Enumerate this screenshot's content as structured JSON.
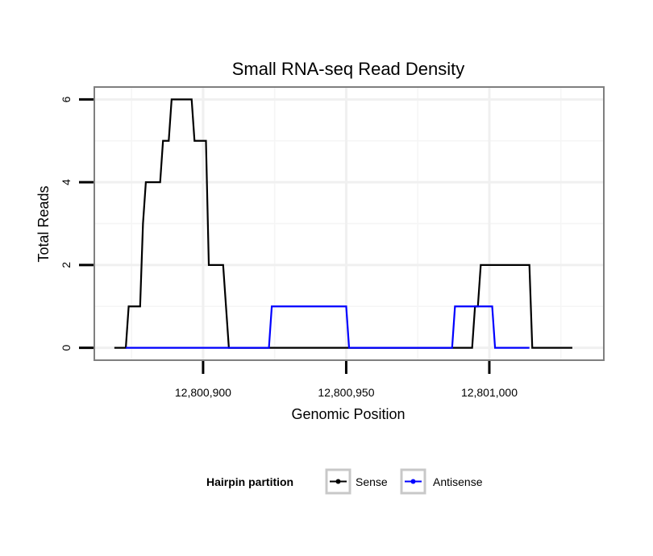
{
  "chart_data": {
    "type": "line",
    "title": "Small RNA-seq Read Density",
    "xlabel": "Genomic Position",
    "ylabel": "Total Reads",
    "xlim": [
      12800862,
      12801040
    ],
    "ylim": [
      -0.3,
      6.3
    ],
    "x_ticks": [
      12800900,
      12800950,
      12801000
    ],
    "x_tick_labels": [
      "12,800,900",
      "12,800,950",
      "12,801,000"
    ],
    "y_ticks": [
      0,
      2,
      4,
      6
    ],
    "y_tick_labels": [
      "0",
      "2",
      "4",
      "6"
    ],
    "grid": true,
    "legend": {
      "title": "Hairpin partition",
      "position": "bottom"
    },
    "series": [
      {
        "name": "Sense",
        "color": "#000000",
        "points": [
          [
            12800869,
            0
          ],
          [
            12800873,
            0
          ],
          [
            12800874,
            1
          ],
          [
            12800878,
            1
          ],
          [
            12800879,
            3
          ],
          [
            12800880,
            4
          ],
          [
            12800885,
            4
          ],
          [
            12800886,
            5
          ],
          [
            12800888,
            5
          ],
          [
            12800889,
            6
          ],
          [
            12800896,
            6
          ],
          [
            12800897,
            5
          ],
          [
            12800901,
            5
          ],
          [
            12800902,
            2
          ],
          [
            12800907,
            2
          ],
          [
            12800909,
            0
          ],
          [
            12800994,
            0
          ],
          [
            12800995,
            1
          ],
          [
            12800996,
            1
          ],
          [
            12800997,
            2
          ],
          [
            12801014,
            2
          ],
          [
            12801015,
            0
          ],
          [
            12801029,
            0
          ]
        ]
      },
      {
        "name": "Antisense",
        "color": "#0000ff",
        "points": [
          [
            12800873,
            0
          ],
          [
            12800909,
            0
          ],
          [
            12800923,
            0
          ],
          [
            12800924,
            1
          ],
          [
            12800950,
            1
          ],
          [
            12800951,
            0
          ],
          [
            12800987,
            0
          ],
          [
            12800988,
            1
          ],
          [
            12801001,
            1
          ],
          [
            12801002,
            0
          ],
          [
            12801014,
            0
          ]
        ]
      }
    ]
  }
}
